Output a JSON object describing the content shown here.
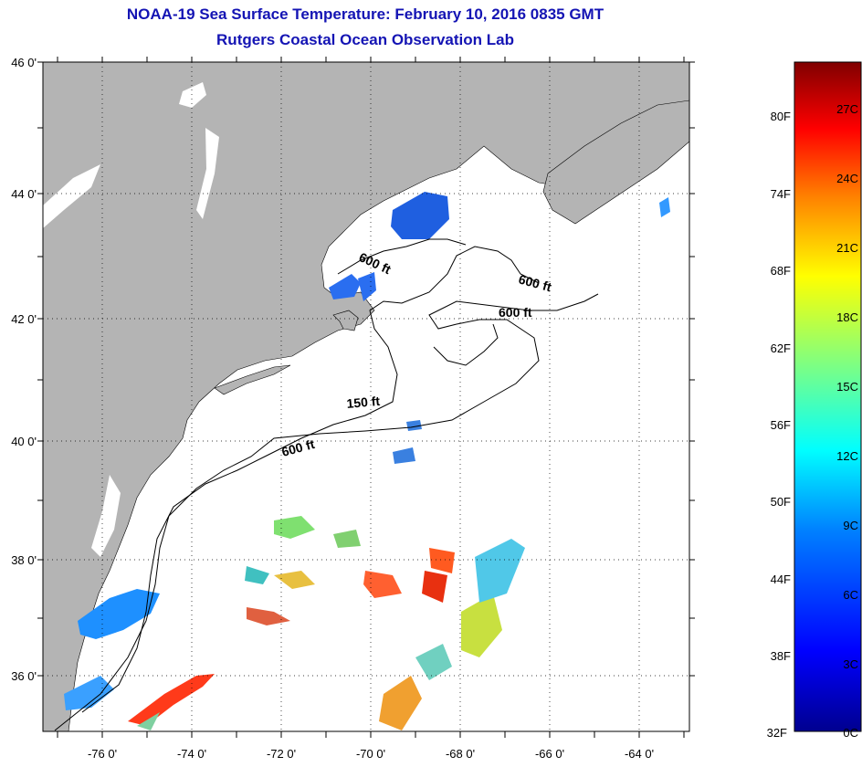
{
  "title": {
    "line1": "NOAA-19 Sea Surface Temperature:  February 10, 2016 0835 GMT",
    "line2": "Rutgers Coastal Ocean Observation Lab"
  },
  "axes": {
    "lat_labels": [
      "46 0'",
      "44 0'",
      "42 0'",
      "40 0'",
      "38 0'",
      "36 0'"
    ],
    "lon_labels": [
      "-76 0'",
      "-74 0'",
      "-72 0'",
      "-70 0'",
      "-68 0'",
      "-66 0'",
      "-64 0'"
    ]
  },
  "contours": [
    {
      "label": "600 ft",
      "depth_ft": 600
    },
    {
      "label": "600 ft",
      "depth_ft": 600
    },
    {
      "label": "600 ft",
      "depth_ft": 600
    },
    {
      "label": "150 ft",
      "depth_ft": 150
    },
    {
      "label": "600 ft",
      "depth_ft": 600
    }
  ],
  "colorbar": {
    "fahrenheit": [
      "80F",
      "74F",
      "68F",
      "62F",
      "56F",
      "50F",
      "44F",
      "38F",
      "32F"
    ],
    "celsius": [
      "27C",
      "24C",
      "21C",
      "18C",
      "15C",
      "12C",
      "9C",
      "6C",
      "3C",
      "0C"
    ],
    "colors": [
      "#00008f",
      "#0000ff",
      "#0080ff",
      "#00ffff",
      "#80ff80",
      "#ffff00",
      "#ff8000",
      "#ff0000",
      "#800000"
    ]
  },
  "colors": {
    "land": "#b4b4b4",
    "ocean": "#ffffff",
    "title": "#1414b4"
  }
}
